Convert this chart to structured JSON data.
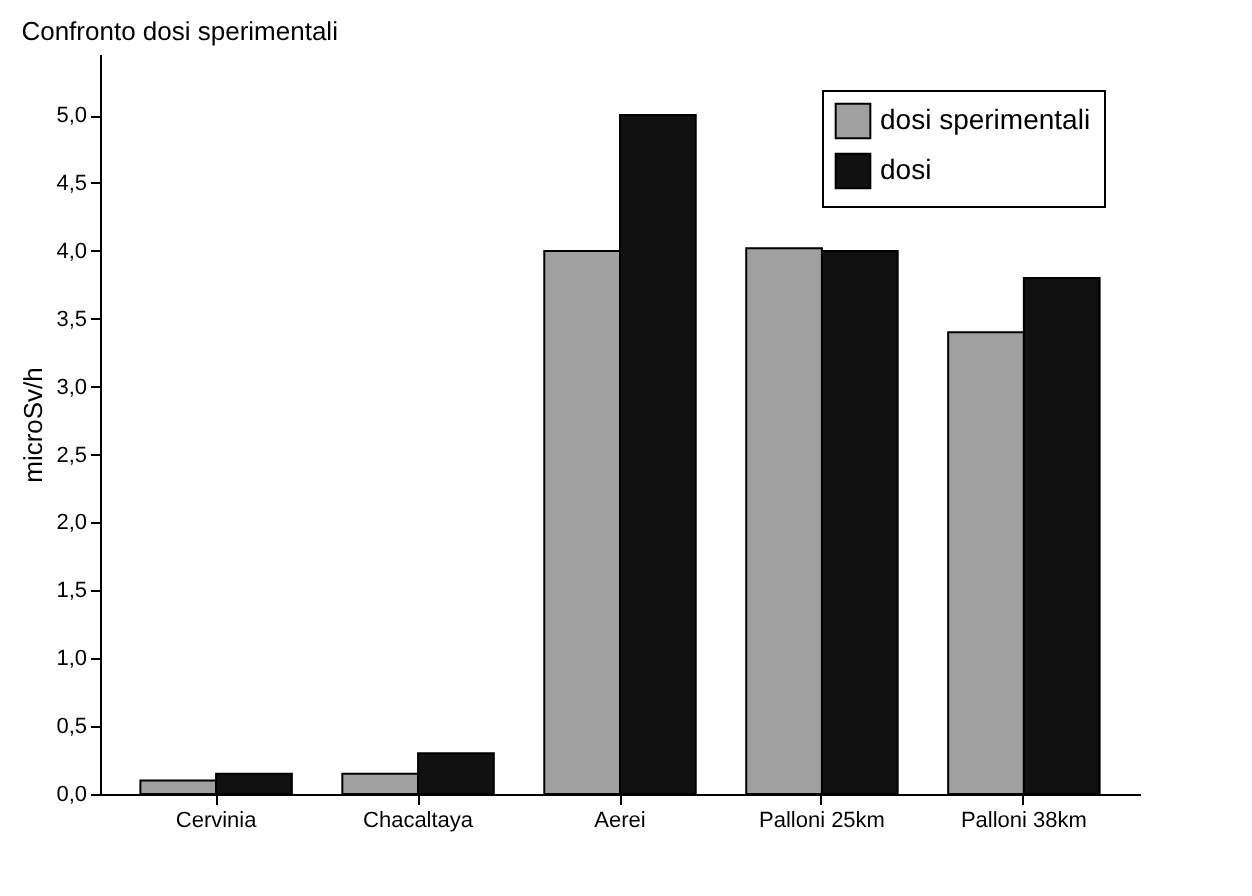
{
  "chart_data": {
    "type": "bar",
    "title": "Confronto dosi sperimentali",
    "ylabel": "microSv/h",
    "categories": [
      "Cervinia",
      "Chacaltaya",
      "Aerei",
      "Palloni 25km",
      "Palloni 38km"
    ],
    "series": [
      {
        "name": "dosi sperimentali",
        "color": "#a0a0a0",
        "values": [
          0.1,
          0.15,
          4.0,
          4.02,
          3.4
        ]
      },
      {
        "name": "dosi",
        "color": "#111111",
        "values": [
          0.15,
          0.3,
          5.0,
          4.0,
          3.8
        ]
      }
    ],
    "ylim": [
      0,
      5.45
    ],
    "yticks": [
      {
        "value": 0,
        "label": "0,0"
      },
      {
        "value": 0.5,
        "label": "0,5"
      },
      {
        "value": 1,
        "label": "1,0"
      },
      {
        "value": 1.5,
        "label": "1,5"
      },
      {
        "value": 2,
        "label": "2,0"
      },
      {
        "value": 2.5,
        "label": "2,5"
      },
      {
        "value": 3,
        "label": "3,0"
      },
      {
        "value": 3.5,
        "label": "3,5"
      },
      {
        "value": 4,
        "label": "4,0"
      },
      {
        "value": 4.5,
        "label": "4,5"
      },
      {
        "value": 5,
        "label": "5,0"
      }
    ],
    "grid": false,
    "legend": "top right"
  }
}
